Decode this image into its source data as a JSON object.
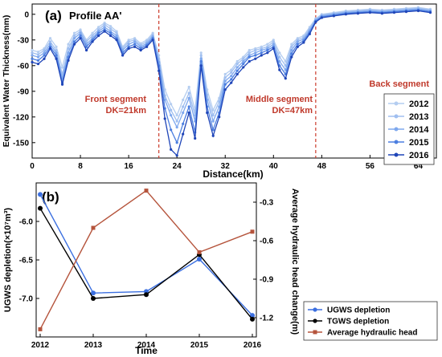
{
  "chart_data": [
    {
      "type": "line",
      "panel_label": "(a)",
      "title": "Profile AA'",
      "xlabel": "Distance(km)",
      "ylabel": "Equivalent Water Thickness(mm)",
      "xlim": [
        0,
        67
      ],
      "ylim": [
        -168,
        12
      ],
      "xticks": [
        0,
        8,
        16,
        24,
        32,
        40,
        48,
        56,
        64
      ],
      "yticks": [
        0,
        -30,
        -60,
        -90,
        -120,
        -150
      ],
      "grid": false,
      "legend_position": "bottom-right",
      "colors": {
        "2012": "#b4cdf0",
        "2013": "#a0bff0",
        "2014": "#7ea8ee",
        "2015": "#4c7fe0",
        "2016": "#1f45b8",
        "segment_line": "#cc3b2b",
        "segment_text": "#c0392b"
      },
      "segments": [
        {
          "x": 21,
          "label_line1": "Front segment",
          "label_line2": "DK=21km"
        },
        {
          "x": 47,
          "label_line1": "Middle segment",
          "label_line2": "DK=47km"
        }
      ],
      "back_segment_label": "Back segment",
      "x": [
        0,
        1,
        2,
        3,
        4,
        5,
        6,
        7,
        8,
        9,
        10,
        11,
        12,
        13,
        14,
        15,
        16,
        17,
        18,
        19,
        20,
        21,
        22,
        23,
        24,
        25,
        26,
        27,
        28,
        29,
        30,
        31,
        32,
        33,
        34,
        35,
        36,
        37,
        38,
        39,
        40,
        41,
        42,
        43,
        44,
        45,
        46,
        47,
        48,
        50,
        52,
        54,
        56,
        58,
        60,
        62,
        64,
        66
      ],
      "series": [
        {
          "name": "2012",
          "values": [
            -42,
            -44,
            -40,
            -28,
            -38,
            -62,
            -35,
            -22,
            -18,
            -30,
            -22,
            -15,
            -10,
            -14,
            -20,
            -38,
            -30,
            -28,
            -34,
            -30,
            -22,
            -48,
            -88,
            -105,
            -118,
            -100,
            -85,
            -112,
            -45,
            -88,
            -112,
            -98,
            -70,
            -65,
            -55,
            -50,
            -42,
            -40,
            -38,
            -35,
            -30,
            -45,
            -55,
            -35,
            -28,
            -25,
            -15,
            -5,
            0,
            2,
            4,
            5,
            6,
            5,
            6,
            7,
            8,
            6
          ]
        },
        {
          "name": "2013",
          "values": [
            -45,
            -47,
            -42,
            -32,
            -42,
            -70,
            -40,
            -25,
            -20,
            -32,
            -25,
            -18,
            -12,
            -17,
            -22,
            -40,
            -32,
            -30,
            -36,
            -32,
            -24,
            -52,
            -95,
            -112,
            -125,
            -108,
            -92,
            -118,
            -48,
            -94,
            -118,
            -102,
            -74,
            -68,
            -58,
            -52,
            -45,
            -42,
            -40,
            -38,
            -32,
            -50,
            -60,
            -38,
            -30,
            -27,
            -17,
            -6,
            -1,
            1,
            3,
            4,
            5,
            4,
            5,
            6,
            7,
            5
          ]
        },
        {
          "name": "2014",
          "values": [
            -48,
            -50,
            -45,
            -35,
            -45,
            -75,
            -45,
            -28,
            -22,
            -35,
            -28,
            -20,
            -15,
            -20,
            -25,
            -42,
            -35,
            -32,
            -38,
            -34,
            -26,
            -56,
            -100,
            -118,
            -132,
            -115,
            -98,
            -125,
            -52,
            -100,
            -125,
            -108,
            -78,
            -72,
            -62,
            -55,
            -48,
            -45,
            -42,
            -40,
            -35,
            -55,
            -65,
            -42,
            -32,
            -29,
            -19,
            -7,
            -2,
            0,
            2,
            3,
            4,
            3,
            4,
            5,
            6,
            4
          ]
        },
        {
          "name": "2015",
          "values": [
            -52,
            -54,
            -48,
            -38,
            -48,
            -80,
            -50,
            -32,
            -25,
            -38,
            -30,
            -22,
            -18,
            -22,
            -28,
            -45,
            -38,
            -35,
            -40,
            -36,
            -28,
            -60,
            -110,
            -135,
            -150,
            -128,
            -108,
            -138,
            -55,
            -108,
            -135,
            -115,
            -82,
            -76,
            -66,
            -58,
            -50,
            -48,
            -45,
            -42,
            -38,
            -60,
            -70,
            -46,
            -35,
            -31,
            -21,
            -8,
            -3,
            -1,
            1,
            2,
            3,
            2,
            3,
            4,
            5,
            3
          ]
        },
        {
          "name": "2016",
          "values": [
            -56,
            -58,
            -52,
            -40,
            -52,
            -82,
            -54,
            -35,
            -28,
            -42,
            -32,
            -25,
            -20,
            -25,
            -30,
            -48,
            -40,
            -38,
            -42,
            -38,
            -30,
            -66,
            -122,
            -158,
            -165,
            -140,
            -115,
            -145,
            -60,
            -115,
            -142,
            -120,
            -88,
            -80,
            -70,
            -62,
            -55,
            -52,
            -48,
            -45,
            -40,
            -65,
            -75,
            -50,
            -38,
            -33,
            -23,
            -9,
            -4,
            -2,
            0,
            1,
            2,
            1,
            2,
            3,
            4,
            2
          ]
        }
      ]
    },
    {
      "type": "line",
      "panel_label": "(b)",
      "xlabel": "Time",
      "ylabel_left": "UGWS depletion(×10⁷m³)",
      "ylabel_right": "Average hydraulic head change(m)",
      "categories": [
        "2012",
        "2013",
        "2014",
        "2015",
        "2016"
      ],
      "ylim_left": [
        -7.5,
        -5.5
      ],
      "yticks_left": [
        "-6.0",
        "-6.5",
        "-7.0"
      ],
      "yticks_left_values": [
        -6.0,
        -6.5,
        -7.0
      ],
      "ylim_right": [
        -1.35,
        -0.15
      ],
      "yticks_right": [
        "-0.3",
        "-0.6",
        "-0.9",
        "-1.2"
      ],
      "yticks_right_values": [
        -0.3,
        -0.6,
        -0.9,
        -1.2
      ],
      "grid": false,
      "legend_position": "bottom-right",
      "series": [
        {
          "name": "UGWS depletion",
          "axis": "left",
          "color": "#3b6fe0",
          "marker": "circle",
          "values": [
            -5.65,
            -6.93,
            -6.91,
            -6.49,
            -7.22
          ]
        },
        {
          "name": "TGWS depletion",
          "axis": "left",
          "color": "#000000",
          "marker": "circle",
          "values": [
            -5.83,
            -7.0,
            -6.95,
            -6.43,
            -7.27
          ]
        },
        {
          "name": "Average hydraulic head",
          "axis": "right",
          "color": "#b5543c",
          "marker": "square",
          "values": [
            -1.29,
            -0.5,
            -0.21,
            -0.69,
            -0.53
          ]
        }
      ]
    }
  ]
}
